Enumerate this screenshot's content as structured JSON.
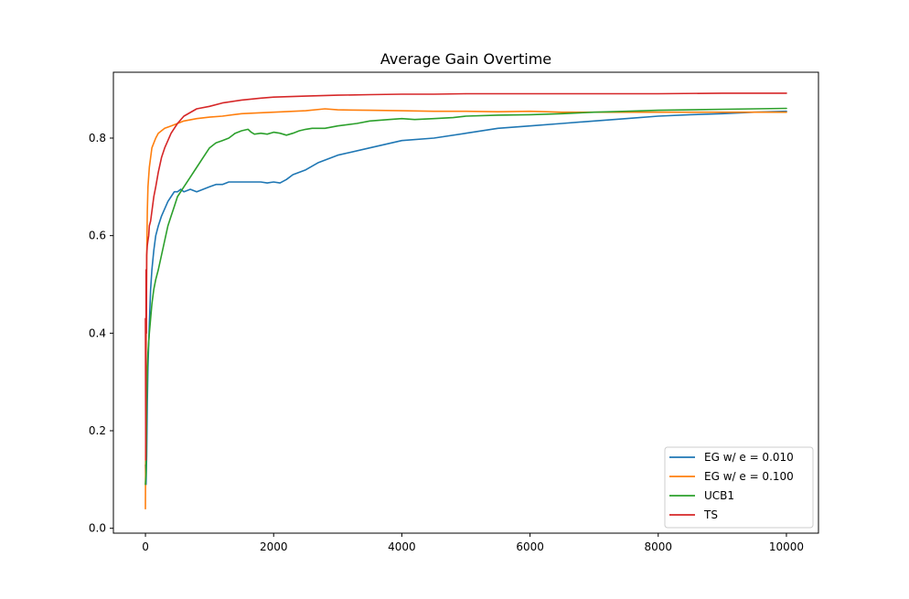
{
  "chart_data": {
    "type": "line",
    "title": "Average Gain Overtime",
    "xlabel": "",
    "ylabel": "",
    "xlim": [
      -500,
      10500
    ],
    "ylim": [
      -0.01,
      0.935
    ],
    "xticks": [
      0,
      2000,
      4000,
      6000,
      8000,
      10000
    ],
    "xtick_labels": [
      "0",
      "2000",
      "4000",
      "6000",
      "8000",
      "10000"
    ],
    "yticks": [
      0.0,
      0.2,
      0.4,
      0.6,
      0.8
    ],
    "ytick_labels": [
      "0.0",
      "0.2",
      "0.4",
      "0.6",
      "0.8"
    ],
    "grid": false,
    "legend_position": "lower-right",
    "series": [
      {
        "name": "EG w/ e = 0.010",
        "color": "#1f77b4",
        "x": [
          0,
          10,
          20,
          30,
          40,
          60,
          80,
          100,
          130,
          160,
          200,
          250,
          300,
          350,
          400,
          450,
          500,
          550,
          600,
          700,
          800,
          900,
          1000,
          1100,
          1200,
          1300,
          1400,
          1500,
          1600,
          1700,
          1800,
          1900,
          2000,
          2100,
          2200,
          2300,
          2500,
          2700,
          3000,
          3500,
          4000,
          4500,
          5000,
          5500,
          6000,
          6500,
          7000,
          7500,
          8000,
          8500,
          9000,
          9500,
          10000
        ],
        "y": [
          0.13,
          0.09,
          0.15,
          0.26,
          0.33,
          0.42,
          0.49,
          0.53,
          0.57,
          0.6,
          0.62,
          0.64,
          0.655,
          0.67,
          0.68,
          0.69,
          0.69,
          0.695,
          0.69,
          0.695,
          0.69,
          0.695,
          0.7,
          0.705,
          0.705,
          0.71,
          0.71,
          0.71,
          0.71,
          0.71,
          0.71,
          0.708,
          0.71,
          0.708,
          0.715,
          0.725,
          0.735,
          0.75,
          0.765,
          0.78,
          0.795,
          0.8,
          0.81,
          0.82,
          0.825,
          0.83,
          0.835,
          0.84,
          0.845,
          0.848,
          0.85,
          0.853,
          0.855
        ]
      },
      {
        "name": "EG w/ e = 0.100",
        "color": "#ff7f0e",
        "x": [
          0,
          10,
          20,
          30,
          40,
          60,
          80,
          100,
          130,
          160,
          200,
          250,
          300,
          400,
          500,
          600,
          800,
          1000,
          1200,
          1500,
          1800,
          2000,
          2500,
          2800,
          3000,
          3500,
          4000,
          4500,
          5000,
          5500,
          6000,
          6500,
          7000,
          8000,
          9000,
          10000
        ],
        "y": [
          0.04,
          0.35,
          0.55,
          0.65,
          0.7,
          0.74,
          0.76,
          0.78,
          0.79,
          0.8,
          0.81,
          0.815,
          0.82,
          0.825,
          0.83,
          0.835,
          0.84,
          0.843,
          0.845,
          0.85,
          0.852,
          0.853,
          0.856,
          0.86,
          0.858,
          0.857,
          0.856,
          0.855,
          0.855,
          0.854,
          0.855,
          0.853,
          0.853,
          0.853,
          0.853,
          0.853
        ]
      },
      {
        "name": "UCB1",
        "color": "#2ca02c",
        "x": [
          0,
          10,
          20,
          30,
          40,
          60,
          80,
          100,
          130,
          160,
          200,
          250,
          300,
          350,
          400,
          450,
          500,
          600,
          700,
          800,
          900,
          1000,
          1100,
          1200,
          1300,
          1400,
          1500,
          1600,
          1650,
          1700,
          1800,
          1900,
          2000,
          2100,
          2200,
          2300,
          2400,
          2500,
          2600,
          2800,
          3000,
          3300,
          3500,
          3800,
          4000,
          4200,
          4500,
          4800,
          5000,
          5500,
          6000,
          6500,
          7000,
          7500,
          8000,
          8500,
          9000,
          9500,
          10000
        ],
        "y": [
          0.09,
          0.11,
          0.25,
          0.32,
          0.36,
          0.4,
          0.43,
          0.46,
          0.49,
          0.51,
          0.53,
          0.56,
          0.59,
          0.62,
          0.64,
          0.66,
          0.68,
          0.7,
          0.72,
          0.74,
          0.76,
          0.78,
          0.79,
          0.795,
          0.8,
          0.81,
          0.815,
          0.818,
          0.812,
          0.808,
          0.81,
          0.808,
          0.812,
          0.81,
          0.806,
          0.81,
          0.815,
          0.818,
          0.82,
          0.82,
          0.825,
          0.83,
          0.835,
          0.838,
          0.84,
          0.838,
          0.84,
          0.842,
          0.845,
          0.847,
          0.848,
          0.85,
          0.853,
          0.855,
          0.857,
          0.858,
          0.859,
          0.86,
          0.861
        ]
      },
      {
        "name": "TS",
        "color": "#d62728",
        "x": [
          0,
          5,
          10,
          15,
          20,
          30,
          40,
          50,
          60,
          80,
          100,
          130,
          160,
          200,
          250,
          300,
          400,
          500,
          600,
          800,
          1000,
          1200,
          1500,
          1800,
          2000,
          2500,
          3000,
          3500,
          4000,
          4500,
          5000,
          6000,
          7000,
          8000,
          9000,
          10000
        ],
        "y": [
          0.43,
          0.14,
          0.53,
          0.4,
          0.56,
          0.58,
          0.59,
          0.6,
          0.62,
          0.63,
          0.65,
          0.68,
          0.7,
          0.73,
          0.76,
          0.78,
          0.81,
          0.83,
          0.845,
          0.86,
          0.865,
          0.872,
          0.878,
          0.882,
          0.884,
          0.886,
          0.888,
          0.889,
          0.89,
          0.89,
          0.891,
          0.891,
          0.891,
          0.891,
          0.892,
          0.892
        ]
      }
    ]
  }
}
